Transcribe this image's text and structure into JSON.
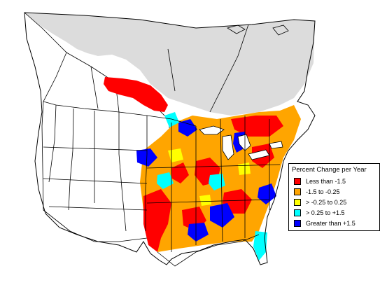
{
  "legend": {
    "title": "Percent Change per Year",
    "items": [
      {
        "label": "Less than -1.5",
        "color": "#ff0000"
      },
      {
        "label": "-1.5 to -0.25",
        "color": "#ffa500"
      },
      {
        "label": "> -0.25 to 0.25",
        "color": "#ffff00"
      },
      {
        "label": "> 0.25 to +1.5",
        "color": "#00ffff"
      },
      {
        "label": "Greater than +1.5",
        "color": "#0000ff"
      }
    ]
  },
  "colors": {
    "no_data_range": "#dcdcdc",
    "outside_range": "#ffffff",
    "boundary_line": "#000000"
  }
}
